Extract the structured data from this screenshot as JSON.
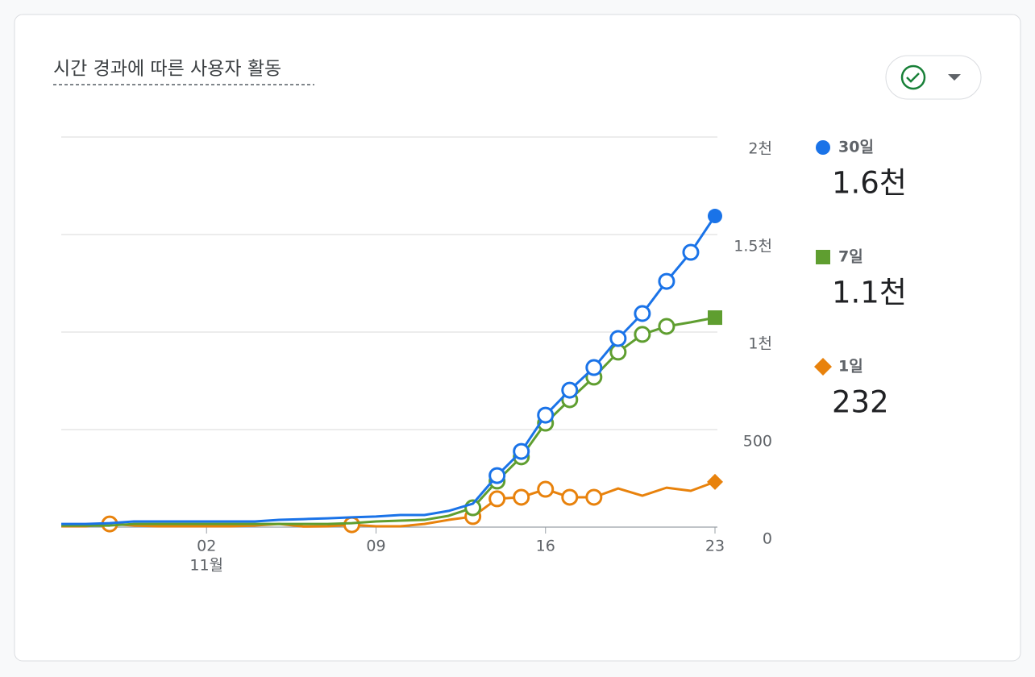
{
  "chart_data": {
    "type": "line",
    "title": "시간 경과에 따른 사용자 활동",
    "categories": [
      null,
      null,
      null,
      null,
      null,
      null,
      "02",
      null,
      null,
      null,
      null,
      null,
      null,
      "09",
      null,
      null,
      null,
      null,
      null,
      null,
      "16",
      null,
      null,
      null,
      null,
      null,
      null,
      "23"
    ],
    "x_sublabel": "11월",
    "ylim": [
      0,
      2000
    ],
    "yticks": [
      0,
      500,
      {
        "value": 1000,
        "label": "1천"
      },
      {
        "value": 1500,
        "label": "1.5천"
      },
      {
        "value": 2000,
        "label": "2천"
      }
    ],
    "grid": true,
    "legend": "right",
    "series": [
      {
        "name": "30일",
        "color": "#1a73e8",
        "end_marker": "circle",
        "legend_label": "1.6천",
        "markers": [
          18,
          19,
          20,
          21,
          22,
          23,
          24,
          25,
          26
        ],
        "values": [
          16,
          16,
          20,
          29,
          29,
          29,
          29,
          29,
          29,
          37,
          41,
          45,
          50,
          54,
          62,
          62,
          83,
          120,
          264,
          388,
          574,
          702,
          818,
          967,
          1095,
          1260,
          1409,
          1595
        ]
      },
      {
        "name": "7일",
        "color": "#5f9e30",
        "end_marker": "square",
        "legend_label": "1.1천",
        "markers": [
          17,
          18,
          19,
          20,
          21,
          22,
          23,
          24,
          25
        ],
        "values": [
          8,
          8,
          8,
          16,
          16,
          16,
          16,
          16,
          16,
          16,
          16,
          16,
          20,
          29,
          33,
          37,
          58,
          99,
          236,
          360,
          533,
          653,
          769,
          897,
          988,
          1029,
          1050,
          1074
        ]
      },
      {
        "name": "1일",
        "color": "#e8820c",
        "end_marker": "diamond",
        "legend_label": "232",
        "markers": [
          2,
          12,
          17,
          18,
          19,
          20,
          21,
          22
        ],
        "values": [
          4,
          4,
          16,
          8,
          4,
          4,
          4,
          4,
          8,
          16,
          3,
          4,
          12,
          4,
          4,
          16,
          37,
          54,
          145,
          153,
          194,
          153,
          153,
          198,
          161,
          202,
          186,
          232
        ]
      }
    ]
  }
}
